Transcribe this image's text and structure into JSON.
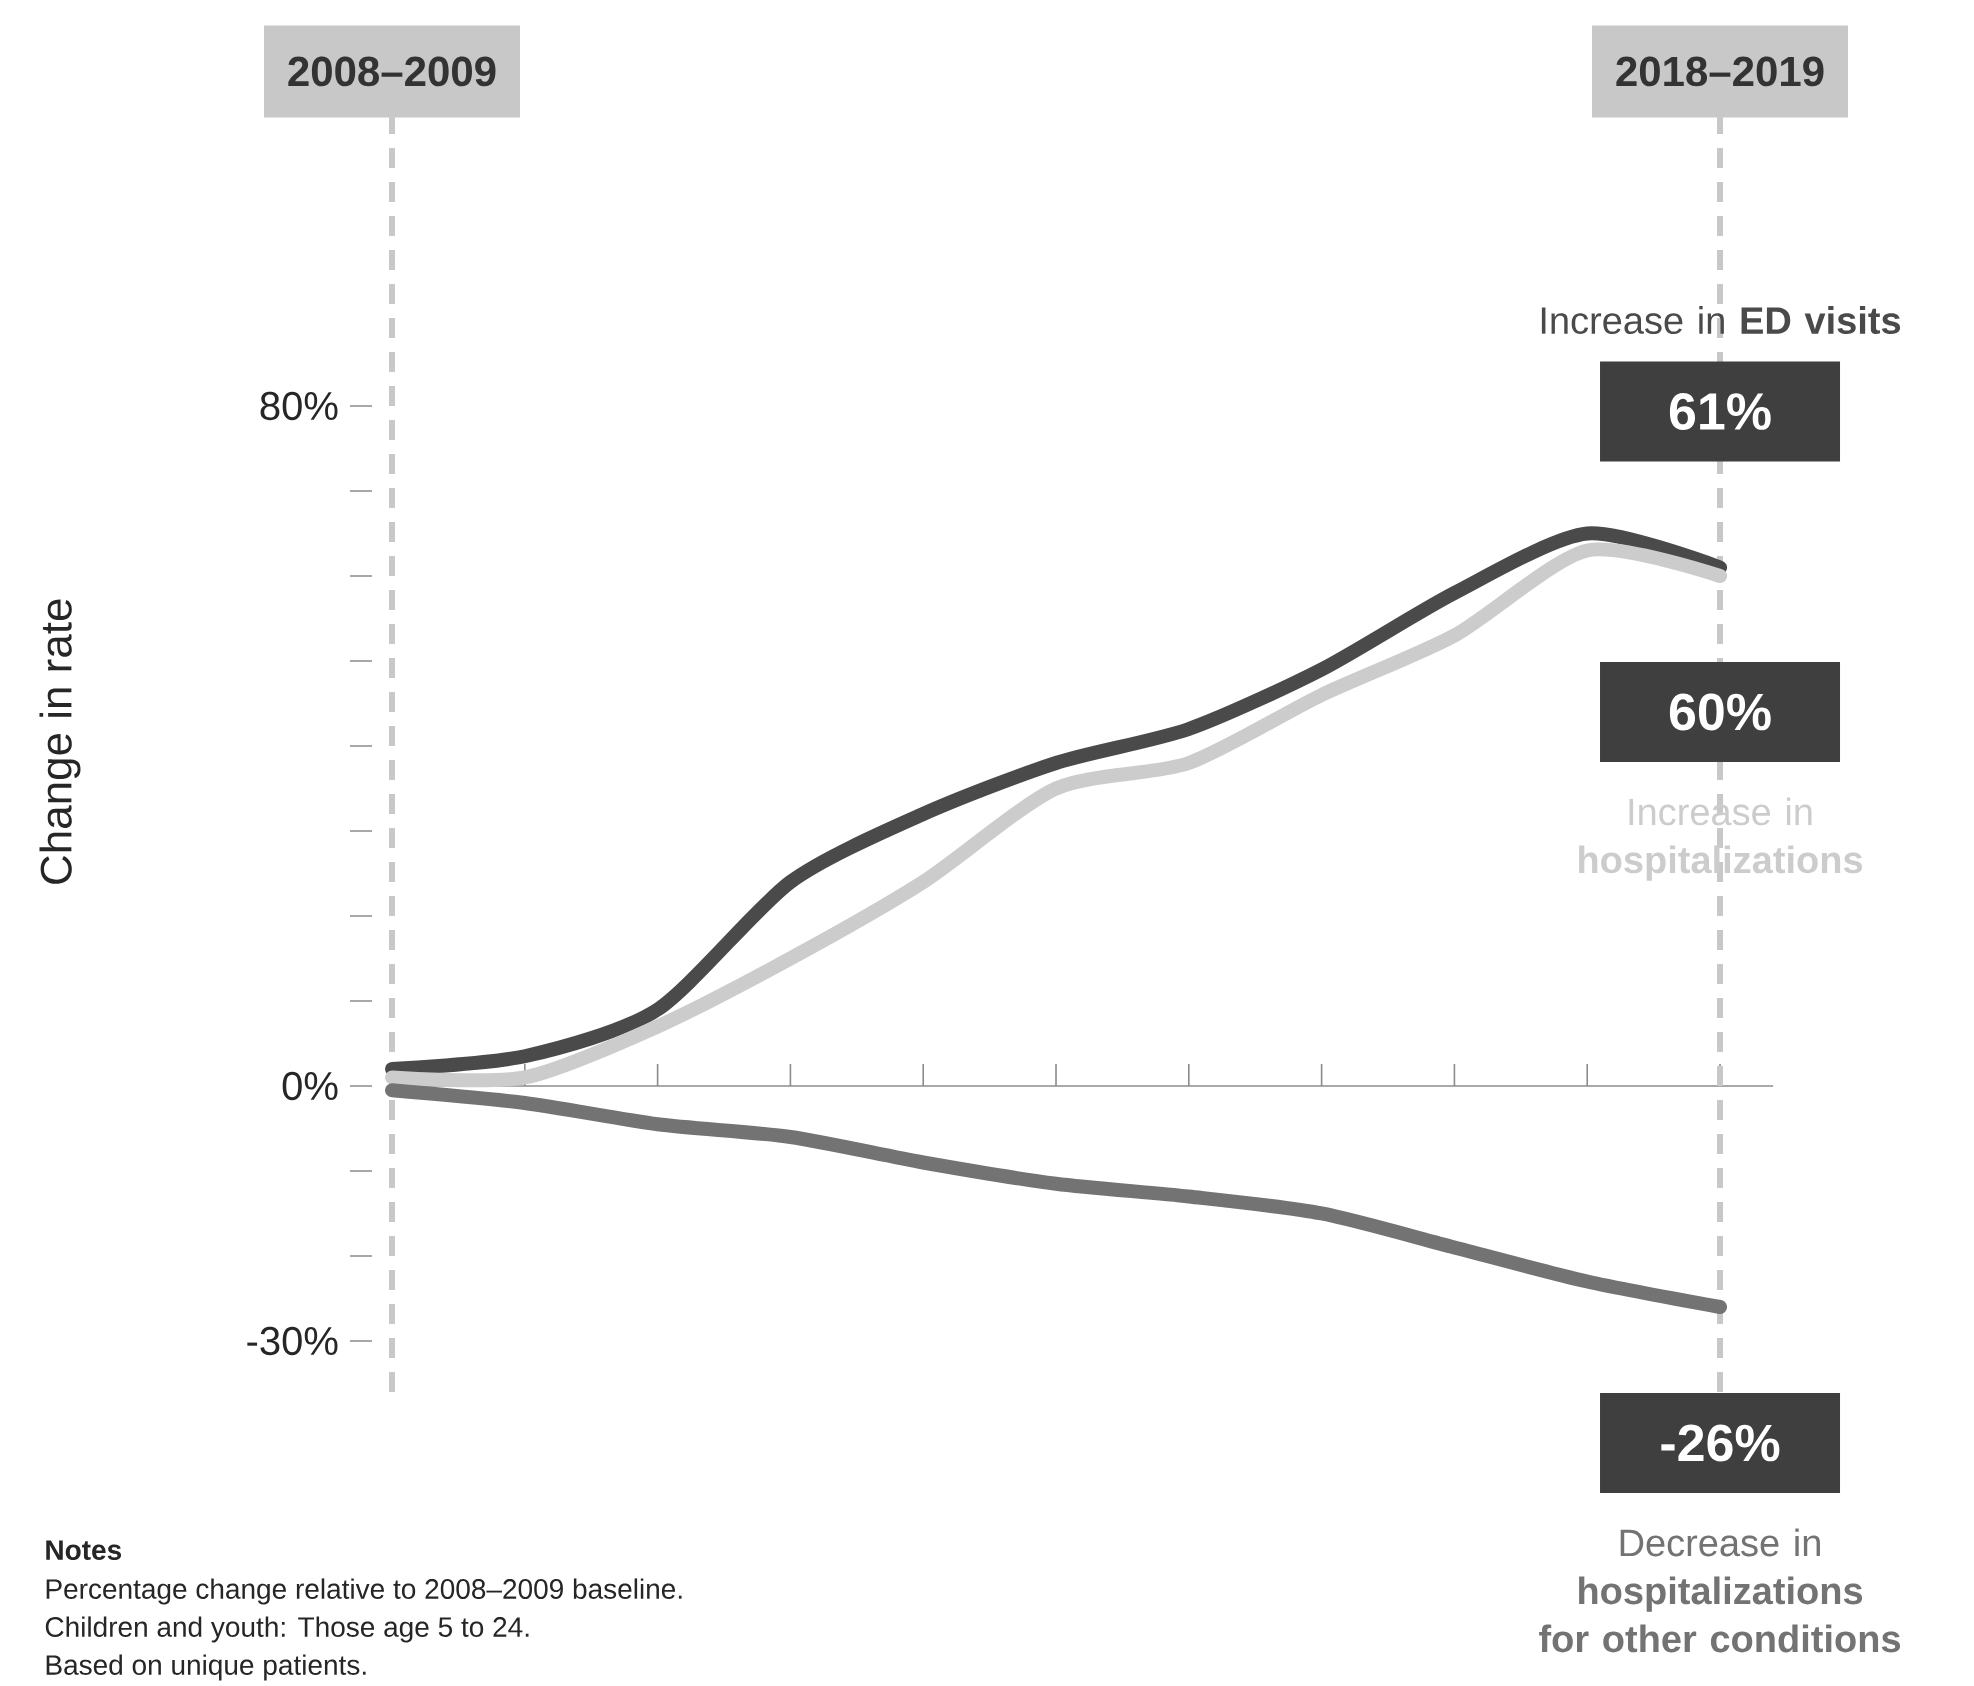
{
  "chart_data": {
    "type": "line",
    "ylabel": "Change in rate",
    "categories": [
      "2008–2009",
      null,
      null,
      null,
      null,
      null,
      null,
      null,
      null,
      null,
      "2018–2019"
    ],
    "ylim": [
      -36,
      117
    ],
    "yticks": [
      {
        "value": -30,
        "label": "-30%"
      },
      {
        "value": -20,
        "label": null
      },
      {
        "value": -10,
        "label": null
      },
      {
        "value": 0,
        "label": "0%"
      },
      {
        "value": 10,
        "label": null
      },
      {
        "value": 20,
        "label": null
      },
      {
        "value": 30,
        "label": null
      },
      {
        "value": 40,
        "label": null
      },
      {
        "value": 50,
        "label": null
      },
      {
        "value": 60,
        "label": null
      },
      {
        "value": 70,
        "label": null
      },
      {
        "value": 80,
        "label": "80%"
      }
    ],
    "line_style": "solid",
    "ref_lines": [
      {
        "axis": "x",
        "value": "2008–2009",
        "color": "#c8c8c8",
        "line_style": "dashed"
      },
      {
        "axis": "x",
        "value": "2018–2019",
        "color": "#c8c8c8",
        "line_style": "dashed"
      }
    ],
    "series": [
      {
        "name": "Increase in **ED visits**",
        "color": "#4a4a4a",
        "values": [
          2,
          3.5,
          9,
          24,
          32,
          38,
          42,
          49,
          58,
          65,
          61
        ],
        "value_labels": [
          null,
          null,
          null,
          null,
          null,
          null,
          null,
          null,
          null,
          null,
          "61%"
        ]
      },
      {
        "name": "Increase in **hospitalizations**",
        "color": "#cccccc",
        "values": [
          1,
          1,
          7,
          15,
          24,
          35,
          38,
          46,
          53,
          63,
          60
        ],
        "value_labels": [
          null,
          null,
          null,
          null,
          null,
          null,
          null,
          null,
          null,
          null,
          "60%"
        ]
      },
      {
        "name": "Decrease in **hospitalizations for other conditions**",
        "color": "#737373",
        "values": [
          -0.5,
          -2,
          -4.5,
          -6,
          -9,
          -11.5,
          -13,
          -15,
          -19,
          -23,
          -26
        ],
        "value_labels": [
          null,
          null,
          null,
          null,
          null,
          null,
          null,
          null,
          null,
          null,
          "-26%"
        ]
      }
    ],
    "annotations": [
      "Notes",
      "Percentage change relative to 2008–2009 baseline.",
      "Children and youth: Those age 5 to 24.",
      "Based on unique patients."
    ]
  }
}
